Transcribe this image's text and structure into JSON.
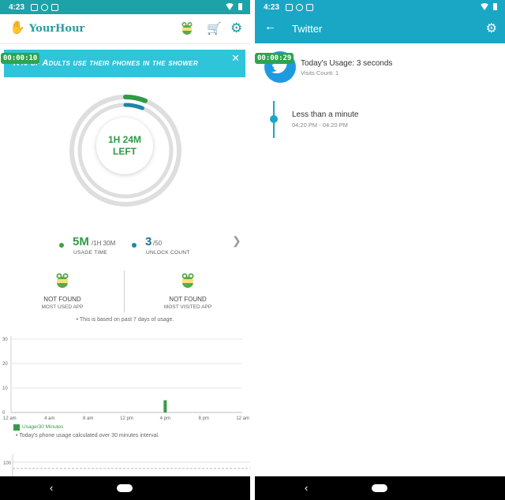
{
  "status_left": {
    "time": "4:23"
  },
  "status_right": {
    "time": "4:23"
  },
  "app": {
    "name": "YourHour",
    "icons": {
      "logo": "hand-logo-icon",
      "mascot": "frog-icon",
      "cart": "cart-icon",
      "settings": "gear-icon"
    }
  },
  "banner": {
    "text": "K% of Adults use their phones in the shower",
    "timer": "00:00:10"
  },
  "ring": {
    "center_line1": "1H 24M",
    "center_line2": "LEFT",
    "usage_fraction": 0.06,
    "unlock_fraction": 0.06
  },
  "stats": {
    "usage_value": "5M",
    "usage_total": "/1H 30M",
    "usage_label": "USAGE TIME",
    "unlock_value": "3",
    "unlock_total": "/50",
    "unlock_label": "UNLOCK COUNT"
  },
  "most_used": {
    "title": "NOT FOUND",
    "label": "MOST USED APP"
  },
  "most_visited": {
    "title": "NOT FOUND",
    "label": "MOST VISITED APP"
  },
  "note": "• This is based on past 7 days of usage.",
  "chart_data": {
    "type": "bar",
    "x_ticks": [
      "12 am",
      "4 am",
      "8 am",
      "12 pm",
      "4 pm",
      "8 pm",
      "12 am"
    ],
    "ylim": [
      0,
      30
    ],
    "y_ticks": [
      0,
      10,
      20,
      30
    ],
    "series": [
      {
        "name": "Usage/30 Minutes",
        "bars": [
          {
            "hour": 16,
            "value": 5
          }
        ]
      }
    ],
    "note": "• Today's phone usage calculated over 30 minutes interval.",
    "second_chart_tick": "100"
  },
  "detail": {
    "title": "Twitter",
    "timer": "00:00:29",
    "usage": "Today's Usage: 3 seconds",
    "visits": "Visits Count: 1",
    "timeline_title": "Less than a minute",
    "timeline_time": "04:20 PM - 04:20 PM"
  },
  "colors": {
    "teal": "#1ba3a8",
    "cyan": "#1aa7c6",
    "green": "#2f9a48",
    "twitter": "#1d9be1",
    "banner": "#2ec4da"
  }
}
